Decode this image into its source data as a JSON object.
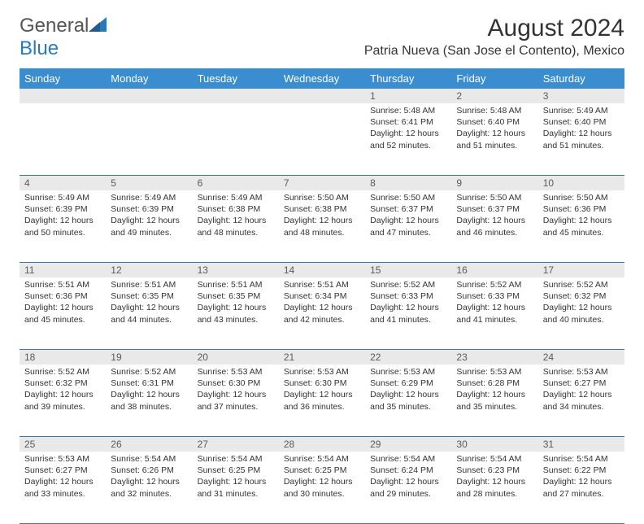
{
  "logo": {
    "word1": "General",
    "word2": "Blue"
  },
  "title": "August 2024",
  "subtitle": "Patria Nueva (San Jose el Contento), Mexico",
  "colors": {
    "header_bg": "#3a8dce",
    "header_text": "#ffffff",
    "daynum_bg": "#e9e9e9",
    "border": "#3a78a8",
    "text": "#333333",
    "logo_gray": "#555555",
    "logo_blue": "#2a7ab9"
  },
  "day_names": [
    "Sunday",
    "Monday",
    "Tuesday",
    "Wednesday",
    "Thursday",
    "Friday",
    "Saturday"
  ],
  "weeks": [
    [
      null,
      null,
      null,
      null,
      {
        "n": "1",
        "sr": "5:48 AM",
        "ss": "6:41 PM",
        "dl": "12 hours and 52 minutes."
      },
      {
        "n": "2",
        "sr": "5:48 AM",
        "ss": "6:40 PM",
        "dl": "12 hours and 51 minutes."
      },
      {
        "n": "3",
        "sr": "5:49 AM",
        "ss": "6:40 PM",
        "dl": "12 hours and 51 minutes."
      }
    ],
    [
      {
        "n": "4",
        "sr": "5:49 AM",
        "ss": "6:39 PM",
        "dl": "12 hours and 50 minutes."
      },
      {
        "n": "5",
        "sr": "5:49 AM",
        "ss": "6:39 PM",
        "dl": "12 hours and 49 minutes."
      },
      {
        "n": "6",
        "sr": "5:49 AM",
        "ss": "6:38 PM",
        "dl": "12 hours and 48 minutes."
      },
      {
        "n": "7",
        "sr": "5:50 AM",
        "ss": "6:38 PM",
        "dl": "12 hours and 48 minutes."
      },
      {
        "n": "8",
        "sr": "5:50 AM",
        "ss": "6:37 PM",
        "dl": "12 hours and 47 minutes."
      },
      {
        "n": "9",
        "sr": "5:50 AM",
        "ss": "6:37 PM",
        "dl": "12 hours and 46 minutes."
      },
      {
        "n": "10",
        "sr": "5:50 AM",
        "ss": "6:36 PM",
        "dl": "12 hours and 45 minutes."
      }
    ],
    [
      {
        "n": "11",
        "sr": "5:51 AM",
        "ss": "6:36 PM",
        "dl": "12 hours and 45 minutes."
      },
      {
        "n": "12",
        "sr": "5:51 AM",
        "ss": "6:35 PM",
        "dl": "12 hours and 44 minutes."
      },
      {
        "n": "13",
        "sr": "5:51 AM",
        "ss": "6:35 PM",
        "dl": "12 hours and 43 minutes."
      },
      {
        "n": "14",
        "sr": "5:51 AM",
        "ss": "6:34 PM",
        "dl": "12 hours and 42 minutes."
      },
      {
        "n": "15",
        "sr": "5:52 AM",
        "ss": "6:33 PM",
        "dl": "12 hours and 41 minutes."
      },
      {
        "n": "16",
        "sr": "5:52 AM",
        "ss": "6:33 PM",
        "dl": "12 hours and 41 minutes."
      },
      {
        "n": "17",
        "sr": "5:52 AM",
        "ss": "6:32 PM",
        "dl": "12 hours and 40 minutes."
      }
    ],
    [
      {
        "n": "18",
        "sr": "5:52 AM",
        "ss": "6:32 PM",
        "dl": "12 hours and 39 minutes."
      },
      {
        "n": "19",
        "sr": "5:52 AM",
        "ss": "6:31 PM",
        "dl": "12 hours and 38 minutes."
      },
      {
        "n": "20",
        "sr": "5:53 AM",
        "ss": "6:30 PM",
        "dl": "12 hours and 37 minutes."
      },
      {
        "n": "21",
        "sr": "5:53 AM",
        "ss": "6:30 PM",
        "dl": "12 hours and 36 minutes."
      },
      {
        "n": "22",
        "sr": "5:53 AM",
        "ss": "6:29 PM",
        "dl": "12 hours and 35 minutes."
      },
      {
        "n": "23",
        "sr": "5:53 AM",
        "ss": "6:28 PM",
        "dl": "12 hours and 35 minutes."
      },
      {
        "n": "24",
        "sr": "5:53 AM",
        "ss": "6:27 PM",
        "dl": "12 hours and 34 minutes."
      }
    ],
    [
      {
        "n": "25",
        "sr": "5:53 AM",
        "ss": "6:27 PM",
        "dl": "12 hours and 33 minutes."
      },
      {
        "n": "26",
        "sr": "5:54 AM",
        "ss": "6:26 PM",
        "dl": "12 hours and 32 minutes."
      },
      {
        "n": "27",
        "sr": "5:54 AM",
        "ss": "6:25 PM",
        "dl": "12 hours and 31 minutes."
      },
      {
        "n": "28",
        "sr": "5:54 AM",
        "ss": "6:25 PM",
        "dl": "12 hours and 30 minutes."
      },
      {
        "n": "29",
        "sr": "5:54 AM",
        "ss": "6:24 PM",
        "dl": "12 hours and 29 minutes."
      },
      {
        "n": "30",
        "sr": "5:54 AM",
        "ss": "6:23 PM",
        "dl": "12 hours and 28 minutes."
      },
      {
        "n": "31",
        "sr": "5:54 AM",
        "ss": "6:22 PM",
        "dl": "12 hours and 27 minutes."
      }
    ]
  ],
  "labels": {
    "sunrise": "Sunrise:",
    "sunset": "Sunset:",
    "daylight": "Daylight:"
  }
}
